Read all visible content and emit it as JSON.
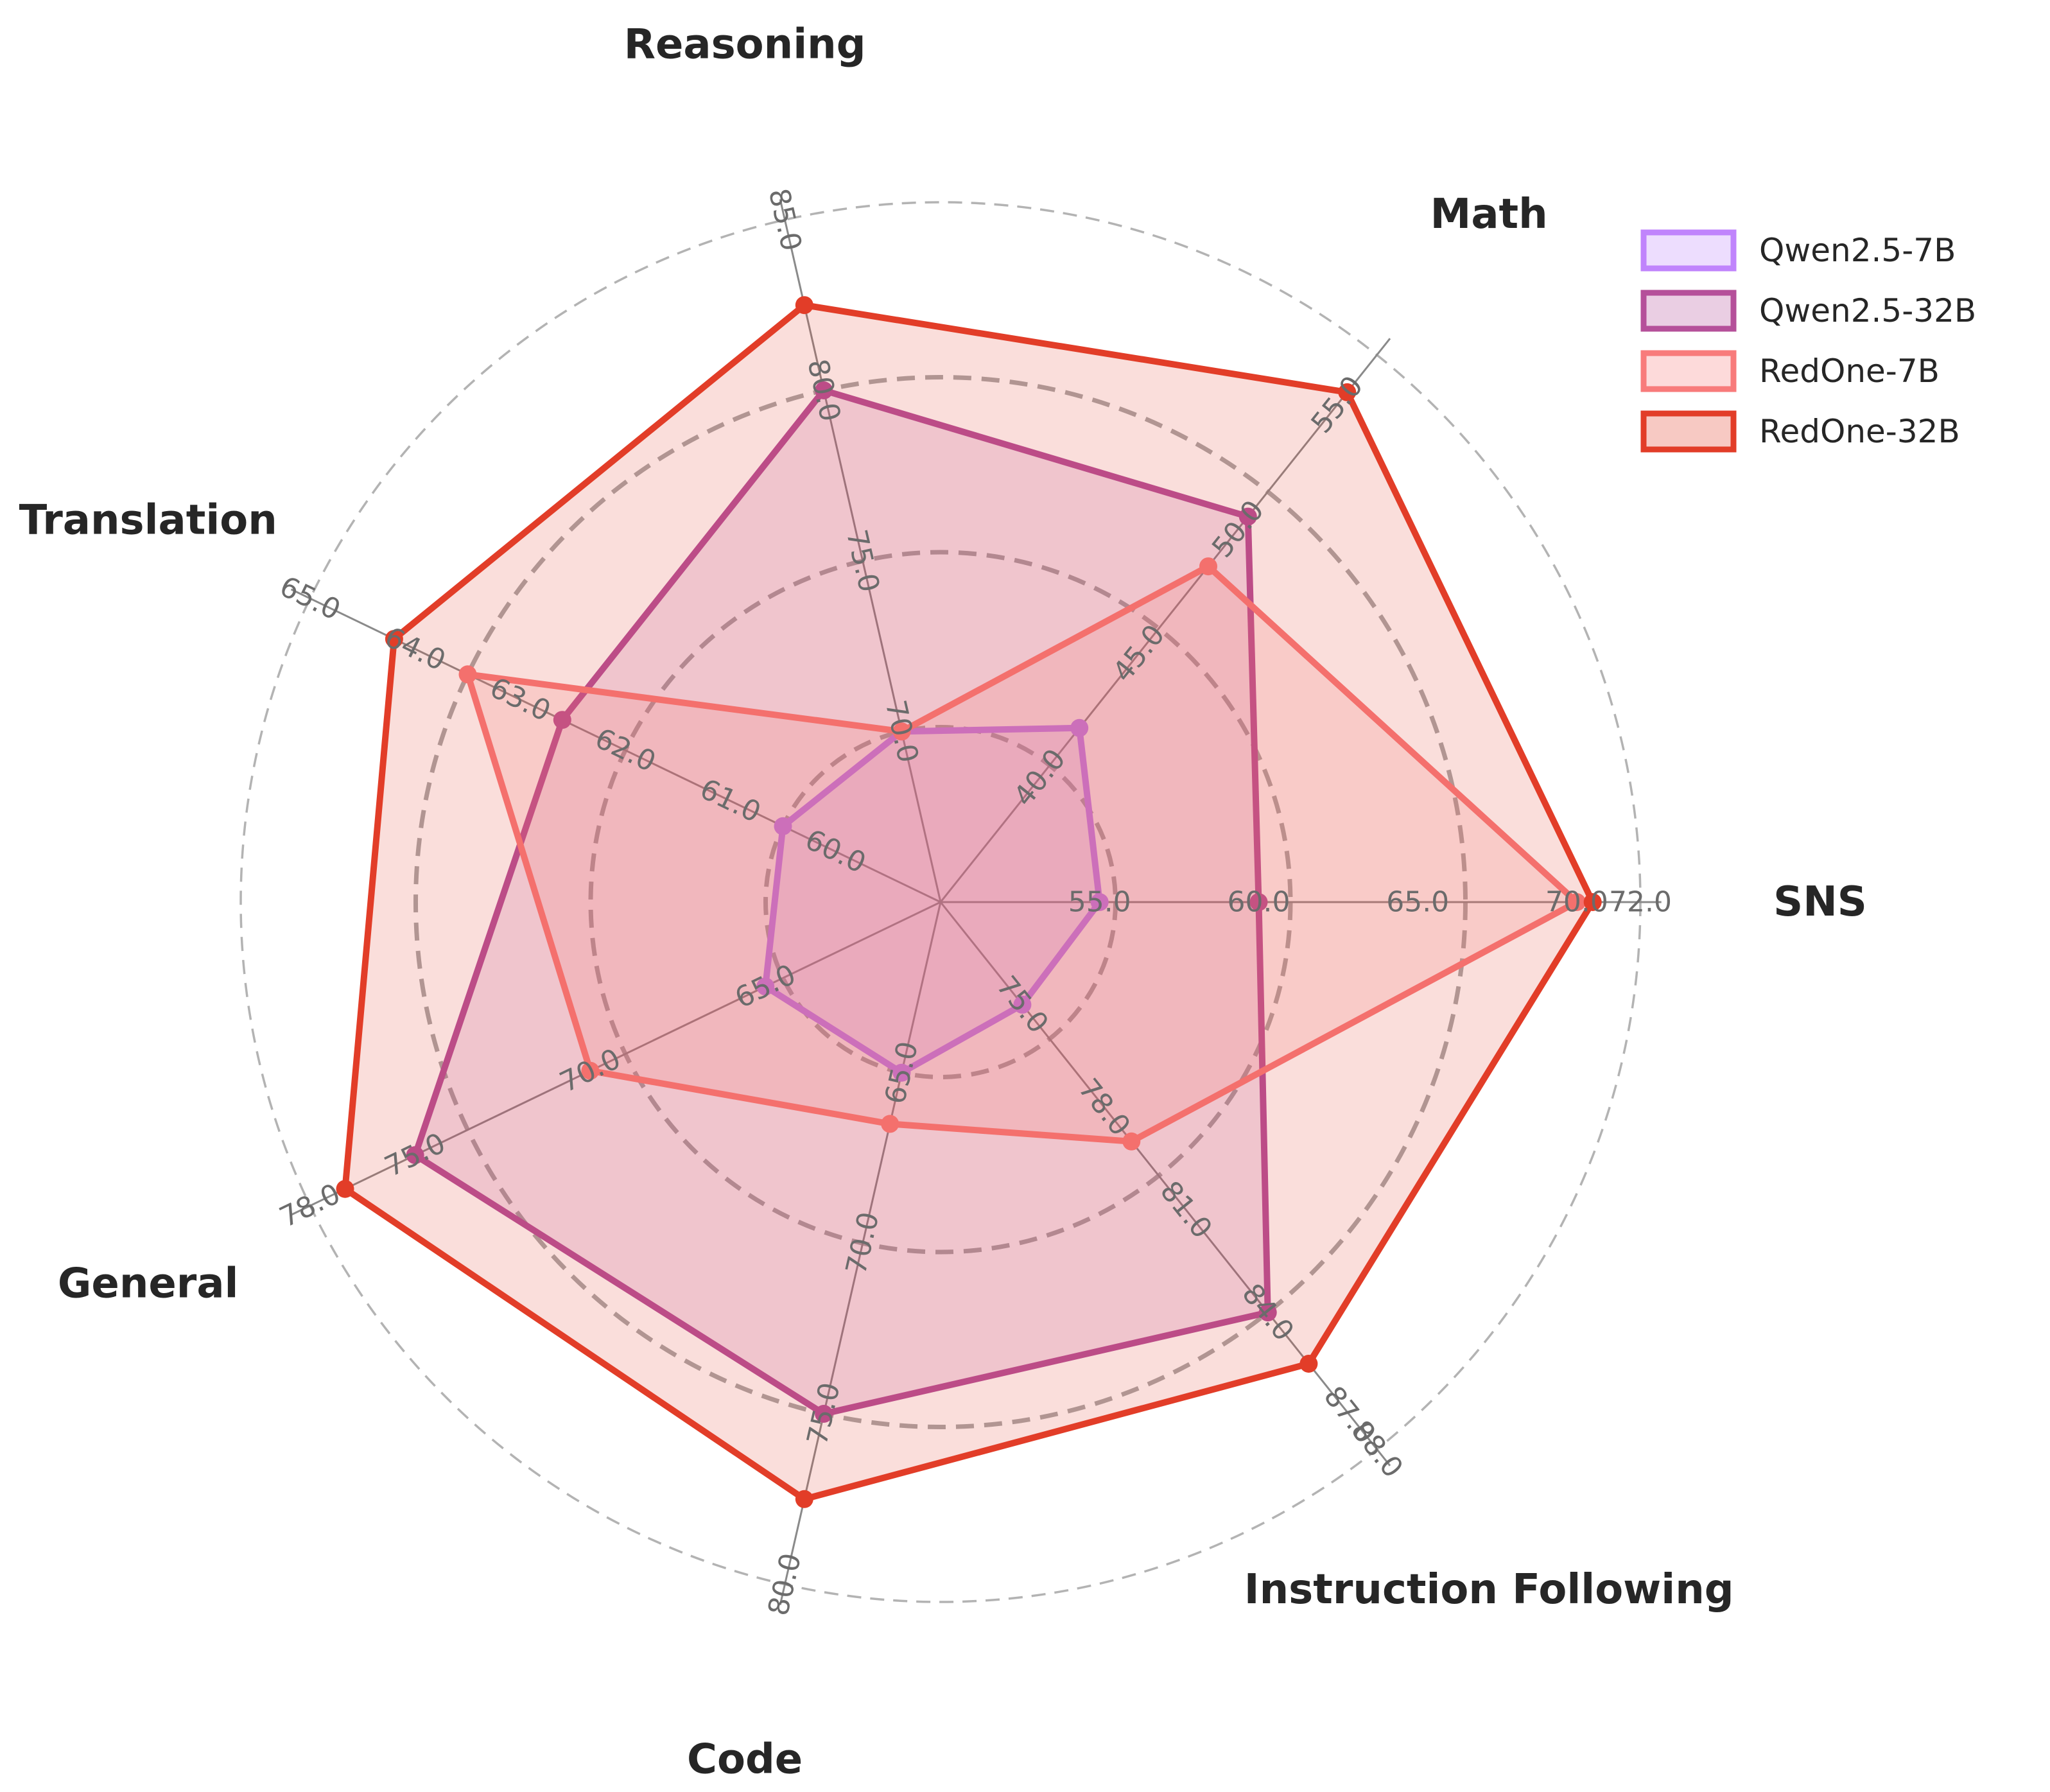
{
  "chart_data": {
    "type": "radar",
    "axes": [
      {
        "name": "SNS",
        "ticks": [
          "55.0",
          "60.0",
          "65.0",
          "70.0",
          "72.0"
        ],
        "min": 50,
        "max": 72
      },
      {
        "name": "Math",
        "ticks": [
          "40.0",
          "45.0",
          "50.0",
          "55.0"
        ],
        "min": 35,
        "max": 57
      },
      {
        "name": "Reasoning",
        "ticks": [
          "70.0",
          "75.0",
          "80.0",
          "85.0"
        ],
        "min": 65,
        "max": 85
      },
      {
        "name": "Translation",
        "ticks": [
          "60.0",
          "61.0",
          "62.0",
          "63.0",
          "64.0",
          "65.0"
        ],
        "min": 59,
        "max": 65
      },
      {
        "name": "General",
        "ticks": [
          "65.0",
          "70.0",
          "75.0",
          "78.0"
        ],
        "min": 60,
        "max": 78
      },
      {
        "name": "Code",
        "ticks": [
          "65.0",
          "70.0",
          "75.0",
          "80.0"
        ],
        "min": 60,
        "max": 80
      },
      {
        "name": "Instruction Following",
        "ticks": [
          "75.0",
          "78.0",
          "81.0",
          "84.0",
          "87.0",
          "88.0"
        ],
        "min": 72,
        "max": 88
      }
    ],
    "series": [
      {
        "name": "Qwen2.5-7B",
        "color": "#c084fc",
        "values": [
          55.0,
          42.0,
          70.0,
          60.5,
          65.0,
          65.0,
          75.0
        ]
      },
      {
        "name": "Qwen2.5-32B",
        "color": "#b5509a",
        "values": [
          60.0,
          50.5,
          80.0,
          62.6,
          75.0,
          75.0,
          84.0
        ]
      },
      {
        "name": "RedOne-7B",
        "color": "#f87b7b",
        "values": [
          70.0,
          48.5,
          70.0,
          63.5,
          70.0,
          66.5,
          79.0
        ]
      },
      {
        "name": "RedOne-32B",
        "color": "#e23d28",
        "values": [
          70.5,
          55.5,
          82.5,
          64.2,
          77.0,
          77.5,
          85.5
        ]
      }
    ],
    "legend_position": "top-right",
    "grid": true
  }
}
